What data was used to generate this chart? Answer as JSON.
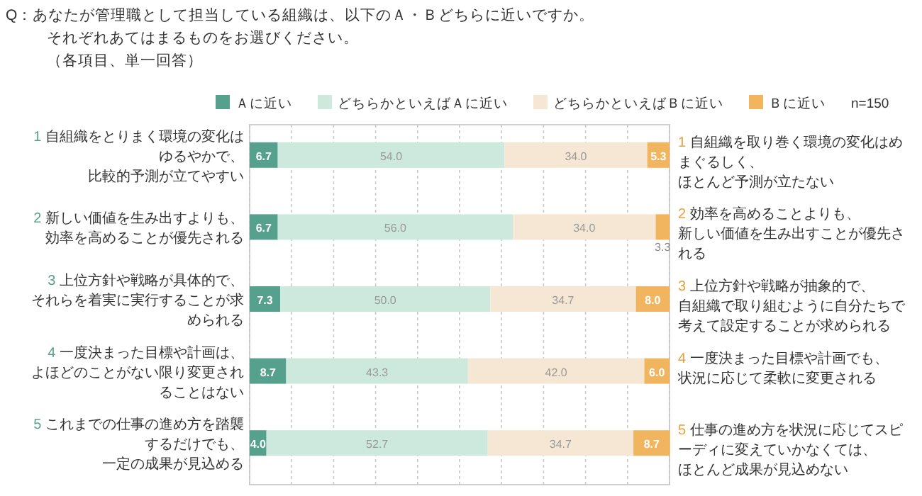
{
  "chart_data": {
    "type": "bar",
    "orientation": "horizontal",
    "stacked": true,
    "title": "Q：あなたが管理職として担当している組織は、以下のＡ・Ｂどちらに近いですか。それぞれあてはまるものをお選びください。（各項目、単一回答）",
    "categories": [
      "1 自組織をとりまく環境の変化はゆるやかで、比較的予測が立てやすい",
      "2 新しい価値を生み出すよりも、効率を高めることが優先される",
      "3 上位方針や戦略が具体的で、それらを着実に実行することが求められる",
      "4 一度決まった目標や計画は、よほどのことがない限り変更されることはない",
      "5 これまでの仕事の進め方を踏襲するだけでも、一定の成果が見込める"
    ],
    "series": [
      {
        "name": "Ａに近い",
        "color": "#56a08e",
        "values": [
          6.7,
          6.7,
          7.3,
          8.7,
          4.0
        ],
        "value_labels": [
          "6.7",
          "6.7",
          "7.3",
          "8.7",
          "4.0"
        ]
      },
      {
        "name": "どちらかといえばＡに近い",
        "color": "#cde9dd",
        "values": [
          54.0,
          56.0,
          50.0,
          43.3,
          52.7
        ],
        "value_labels": [
          "54.0",
          "56.0",
          "50.0",
          "43.3",
          "52.7"
        ]
      },
      {
        "name": "どちらかといえばＢに近い",
        "color": "#f6e7d5",
        "values": [
          34.0,
          34.0,
          34.7,
          42.0,
          34.7
        ],
        "value_labels": [
          "34.0",
          "34.0",
          "34.7",
          "42.0",
          "34.7"
        ]
      },
      {
        "name": "Ｂに近い",
        "color": "#f2b55f",
        "values": [
          5.3,
          3.3,
          8.0,
          6.0,
          8.7
        ],
        "value_labels": [
          "5.3",
          "3.3",
          "8.0",
          "6.0",
          "8.7"
        ]
      }
    ],
    "annotations": [
      "n=150",
      "1 自組織を取り巻く環境の変化はめまぐるしく、ほとんど予測が立たない",
      "2 効率を高めることよりも、新しい価値を生み出すことが優先される",
      "3 上位方針や戦略が抽象的で、自組織で取り組むように自分たちで考えて設定することが求められる",
      "4 一度決まった目標や計画でも、状況に応じて柔軟に変更される",
      "5 仕事の進め方を状況に応じてスピーディに変えていかなくては、ほとんど成果が見込めない"
    ],
    "xlim": [
      0,
      100
    ],
    "xticks": [
      {
        "value": 0,
        "label": null
      },
      {
        "value": 10,
        "label": null
      },
      {
        "value": 20,
        "label": null
      },
      {
        "value": 30,
        "label": null
      },
      {
        "value": 40,
        "label": null
      },
      {
        "value": 50,
        "label": null
      },
      {
        "value": 60,
        "label": null
      },
      {
        "value": 70,
        "label": null
      },
      {
        "value": 80,
        "label": null
      },
      {
        "value": 90,
        "label": null
      },
      {
        "value": 100,
        "label": null
      }
    ],
    "tick_labels": "y",
    "grid": "x",
    "legend": "top"
  }
}
